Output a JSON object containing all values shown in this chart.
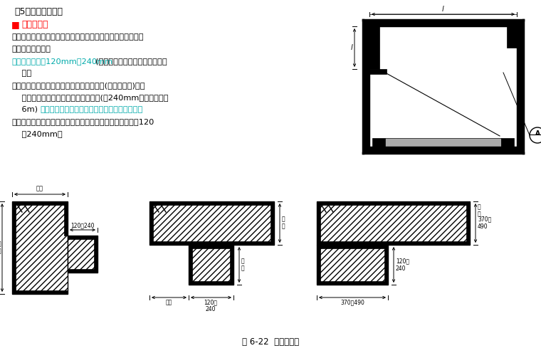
{
  "bg_color": "#ffffff",
  "title_text": "（5）墙身加固措施",
  "red_square": "■",
  "red_heading": "门垛和壁柱",
  "caption": "图 6-22  门垛与壁柱",
  "cyan_color": "#00AAAA",
  "line_color": "#000000",
  "text_lines": [
    {
      "parts": [
        {
          "t": "在墙体上开设门洞一般应设门垛，保证墙身稳定和门框安装。",
          "c": "black"
        }
      ]
    },
    {
      "parts": [
        {
          "t": "门垛宽度同墙厚，",
          "c": "black"
        }
      ]
    },
    {
      "parts": [
        {
          "t": "门垛长度一般为120mm或240mm",
          "c": "cyan"
        },
        {
          "t": "(不计灰缝），过长会影响室内使",
          "c": "black"
        }
      ]
    },
    {
      "parts": [
        {
          "t": "    用。",
          "c": "black"
        }
      ]
    },
    {
      "parts": [
        {
          "t": "当墙体受到集中荷载或墙体过长应增设壁柱(又叫扶壁柱)．使",
          "c": "black"
        }
      ]
    },
    {
      "parts": [
        {
          "t": "    之和墙体共同承担荷载并稳定增身。(如240mm厚，长度超过",
          "c": "black"
        }
      ]
    },
    {
      "parts": [
        {
          "t": "    6m) ",
          "c": "black"
        },
        {
          "t": "壁柱的尺寸符合砖规格，突出墙面半砖或一砖，",
          "c": "cyan"
        }
      ]
    },
    {
      "parts": [
        {
          "t": "考虑到灰缝的错缝要求，丁字型墙段的短边伸出尺寸一般为120",
          "c": "black"
        }
      ]
    },
    {
      "parts": [
        {
          "t": "    或240mm。",
          "c": "black"
        }
      ]
    }
  ]
}
